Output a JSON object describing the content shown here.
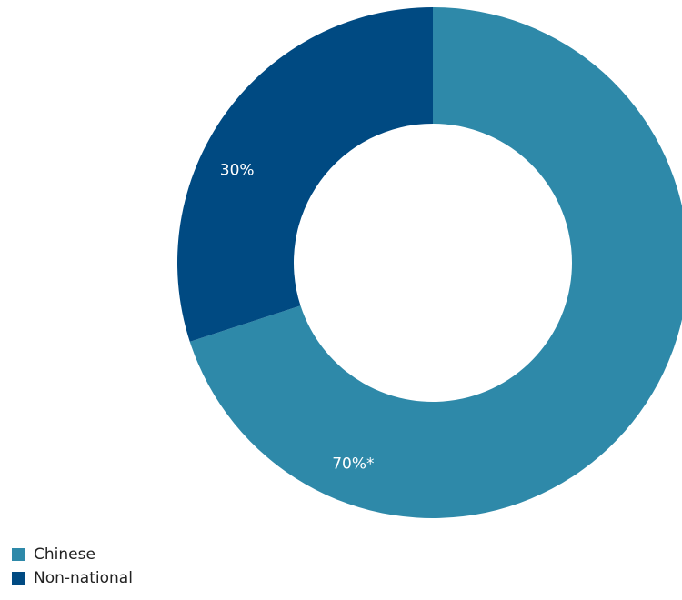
{
  "chart_data": {
    "type": "pie",
    "donut": true,
    "slices": [
      {
        "label": "Chinese",
        "value": 70,
        "display": "70%*",
        "color": "#2E89A9"
      },
      {
        "label": "Non-national",
        "value": 30,
        "display": "30%",
        "color": "#004A82"
      }
    ],
    "legend_position": "bottom-left"
  }
}
